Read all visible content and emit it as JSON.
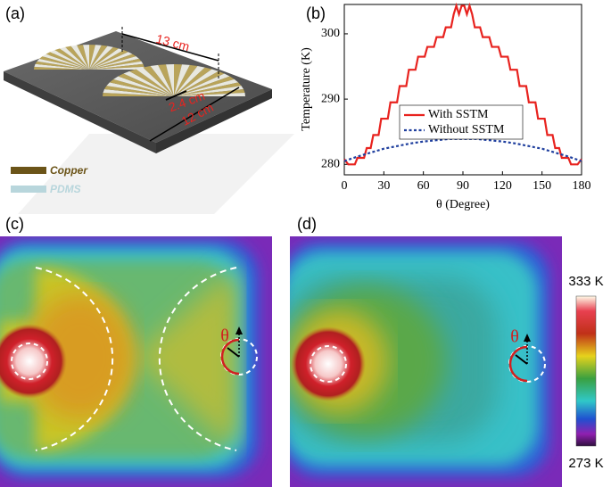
{
  "figure": {
    "panel_labels": [
      "(a)",
      "(b)",
      "(c)",
      "(d)"
    ],
    "dimensions": [
      "13 cm",
      "2.4 cm",
      "12 cm"
    ],
    "materials": [
      "Copper",
      "PDMS"
    ],
    "angle_symbol": [
      "θ",
      "θ"
    ],
    "colorbar_labels": [
      "333 K",
      "273 K"
    ]
  },
  "chart_data": {
    "type": "line",
    "x_label": "θ (Degree)",
    "y_label": "Temperature (K)",
    "xlim": [
      0,
      180
    ],
    "ylim": [
      278.4,
      304.5
    ],
    "xticks": [
      0,
      30,
      60,
      90,
      120,
      150,
      180
    ],
    "yticks": [
      280,
      290,
      300
    ],
    "legend": "center-right",
    "series": [
      {
        "name": "With SSTM",
        "color": "#e8231f",
        "dash": "solid",
        "x": [
          0,
          3,
          8,
          10,
          15,
          17,
          20,
          22,
          26,
          28,
          33,
          35,
          40,
          42,
          47,
          49,
          54,
          56,
          61,
          63,
          68,
          70,
          75,
          77,
          81,
          83,
          85,
          87,
          89,
          91,
          93,
          95,
          97,
          99,
          103,
          105,
          110,
          112,
          117,
          119,
          124,
          126,
          131,
          133,
          138,
          140,
          145,
          147,
          152,
          154,
          158,
          160,
          163,
          165,
          170,
          172,
          177,
          180
        ],
        "values": [
          280.8,
          280,
          280,
          281,
          281,
          282.5,
          282.5,
          284.5,
          284.5,
          287,
          287,
          289.5,
          289.5,
          292,
          292,
          294.5,
          294.5,
          296.5,
          296.5,
          298,
          298,
          299.5,
          299.5,
          301,
          301,
          303,
          304.3,
          303,
          304.3,
          304.3,
          303,
          304.3,
          303,
          301,
          301,
          299.5,
          299.5,
          298,
          298,
          296.5,
          296.5,
          294.5,
          294.5,
          292,
          292,
          289.5,
          289.5,
          287,
          287,
          284.5,
          284.5,
          282.5,
          282.5,
          281,
          281,
          280,
          280,
          280.8
        ]
      },
      {
        "name": "Without SSTM",
        "color": "#1f3f9e",
        "dash": "dotted",
        "x": [
          0,
          10,
          20,
          30,
          40,
          50,
          60,
          70,
          80,
          90,
          100,
          110,
          120,
          130,
          140,
          150,
          160,
          170,
          180
        ],
        "values": [
          280.5,
          281.2,
          281.8,
          282.4,
          282.8,
          283.2,
          283.5,
          283.7,
          283.9,
          283.9,
          283.9,
          283.7,
          283.5,
          283.2,
          282.8,
          282.4,
          281.8,
          281.2,
          280.5
        ]
      }
    ]
  }
}
